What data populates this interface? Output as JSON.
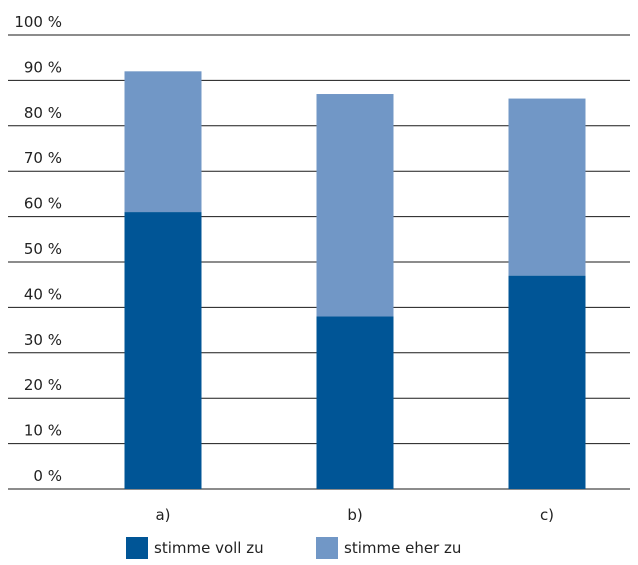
{
  "chart_data": {
    "type": "bar",
    "stacked": true,
    "categories": [
      "a)",
      "b)",
      "c)"
    ],
    "series": [
      {
        "name": "stimme voll zu",
        "values": [
          61,
          38,
          47
        ],
        "color": "#005596"
      },
      {
        "name": "stimme eher zu",
        "values": [
          31,
          49,
          39
        ],
        "color": "#7197c6"
      }
    ],
    "ylim": [
      0,
      100
    ],
    "yticks": [
      "0 %",
      "10 %",
      "20 %",
      "30 %",
      "40 %",
      "50 %",
      "60 %",
      "70 %",
      "80 %",
      "90 %",
      "100 %"
    ],
    "grid": true,
    "legend_position": "bottom",
    "title": "",
    "xlabel": "",
    "ylabel": ""
  },
  "legend": {
    "items": [
      {
        "label": "stimme voll zu",
        "color": "#005596"
      },
      {
        "label": "stimme eher zu",
        "color": "#7197c6"
      }
    ]
  }
}
